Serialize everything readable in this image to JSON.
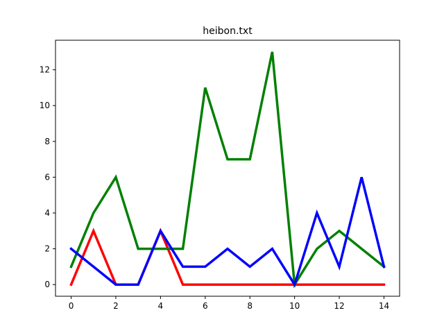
{
  "chart_data": {
    "type": "line",
    "title": "heibon.txt",
    "xlabel": "",
    "ylabel": "",
    "x": [
      0,
      1,
      2,
      3,
      4,
      5,
      6,
      7,
      8,
      9,
      10,
      11,
      12,
      13,
      14
    ],
    "xlim": [
      -0.7,
      14.7
    ],
    "ylim": [
      -0.65,
      13.65
    ],
    "xticks": [
      0,
      2,
      4,
      6,
      8,
      10,
      12,
      14
    ],
    "yticks": [
      0,
      2,
      4,
      6,
      8,
      10,
      12
    ],
    "grid": false,
    "series": [
      {
        "color": "#ff0000",
        "values": [
          0,
          3,
          0,
          0,
          3,
          0,
          0,
          0,
          0,
          0,
          0,
          0,
          0,
          0,
          0
        ]
      },
      {
        "color": "#008000",
        "values": [
          1,
          4,
          6,
          2,
          2,
          2,
          11,
          7,
          7,
          13,
          0,
          2,
          3,
          2,
          1
        ]
      },
      {
        "color": "#0000ff",
        "values": [
          2,
          1,
          0,
          0,
          3,
          1,
          1,
          2,
          1,
          2,
          0,
          4,
          1,
          6,
          1
        ]
      }
    ]
  }
}
